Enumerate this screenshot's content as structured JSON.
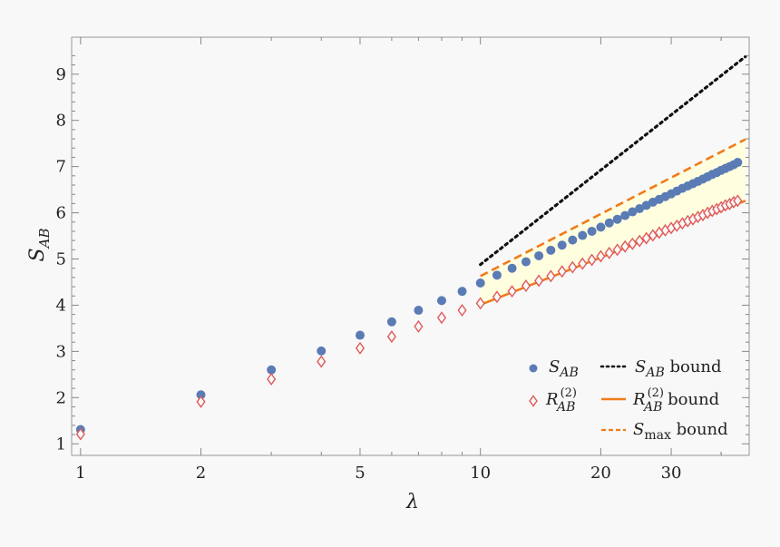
{
  "chart_data": {
    "type": "scatter",
    "title": "",
    "xlabel": "λ",
    "ylabel": "S_AB",
    "xscale": "log",
    "xlim": [
      0.95,
      47
    ],
    "ylim": [
      0.75,
      9.8
    ],
    "xticks": [
      1,
      2,
      5,
      10,
      20,
      30
    ],
    "xtick_labels": [
      "1",
      "2",
      "5",
      "10",
      "20",
      "30"
    ],
    "yticks": [
      1,
      2,
      3,
      4,
      5,
      6,
      7,
      8,
      9
    ],
    "ytick_labels": [
      "1",
      "2",
      "3",
      "4",
      "5",
      "6",
      "7",
      "8",
      "9"
    ],
    "grid": false,
    "legend_position": "bottom-right",
    "series": [
      {
        "name": "S_AB",
        "marker": "circle",
        "color": "#5b7bb5",
        "x": [
          1,
          2,
          3,
          4,
          5,
          6,
          7,
          8,
          9,
          10,
          11,
          12,
          13,
          14,
          15,
          16,
          17,
          18,
          19,
          20,
          21,
          22,
          23,
          24,
          25,
          26,
          27,
          28,
          29,
          30,
          31,
          32,
          33,
          34,
          35,
          36,
          37,
          38,
          39,
          40,
          41,
          42,
          43,
          44
        ],
        "y": [
          1.31,
          2.06,
          2.6,
          3.01,
          3.35,
          3.64,
          3.89,
          4.1,
          4.3,
          4.48,
          4.65,
          4.8,
          4.94,
          5.07,
          5.19,
          5.3,
          5.41,
          5.51,
          5.6,
          5.69,
          5.78,
          5.86,
          5.94,
          6.02,
          6.09,
          6.16,
          6.23,
          6.29,
          6.35,
          6.41,
          6.47,
          6.53,
          6.58,
          6.63,
          6.68,
          6.73,
          6.78,
          6.83,
          6.87,
          6.92,
          6.96,
          7.0,
          7.04,
          7.09
        ]
      },
      {
        "name": "R_AB^(2)",
        "marker": "diamond-open",
        "color": "#e05a5a",
        "x": [
          1,
          2,
          3,
          4,
          5,
          6,
          7,
          8,
          9,
          10,
          11,
          12,
          13,
          14,
          15,
          16,
          17,
          18,
          19,
          20,
          21,
          22,
          23,
          24,
          25,
          26,
          27,
          28,
          29,
          30,
          31,
          32,
          33,
          34,
          35,
          36,
          37,
          38,
          39,
          40,
          41,
          42,
          43,
          44
        ],
        "y": [
          1.21,
          1.91,
          2.4,
          2.78,
          3.07,
          3.32,
          3.54,
          3.73,
          3.89,
          4.04,
          4.18,
          4.3,
          4.42,
          4.53,
          4.63,
          4.73,
          4.82,
          4.9,
          4.98,
          5.06,
          5.13,
          5.2,
          5.27,
          5.33,
          5.39,
          5.45,
          5.51,
          5.57,
          5.62,
          5.67,
          5.72,
          5.77,
          5.82,
          5.86,
          5.91,
          5.95,
          6.0,
          6.04,
          6.08,
          6.12,
          6.16,
          6.19,
          6.23,
          6.26
        ]
      },
      {
        "name": "S_AB bound",
        "line": "dotted",
        "color": "#111111",
        "x": [
          10,
          46
        ],
        "y": [
          4.88,
          9.38
        ]
      },
      {
        "name": "R_AB^(2) bound",
        "line": "solid",
        "color": "#f07b1a",
        "x": [
          10,
          46
        ],
        "y": [
          4.01,
          6.26
        ]
      },
      {
        "name": "S_max bound",
        "line": "dashed",
        "color": "#f07b1a",
        "x": [
          10,
          46
        ],
        "y": [
          4.63,
          7.59
        ]
      }
    ],
    "shaded_band": {
      "between": [
        "R_AB^(2) bound",
        "S_max bound"
      ],
      "x_range": [
        10,
        46
      ],
      "color": "#ffffe0"
    },
    "legend": [
      {
        "main": "S",
        "sub": "AB",
        "sup": "",
        "suffix": ""
      },
      {
        "main": "S",
        "sub": "AB",
        "sup": "",
        "suffix": " bound"
      },
      {
        "main": "R",
        "sub": "AB",
        "sup": "(2)",
        "suffix": ""
      },
      {
        "main": "R",
        "sub": "AB",
        "sup": "(2)",
        "suffix": " bound"
      },
      {
        "main": "S",
        "sub": "max",
        "sup": "",
        "suffix": " bound"
      }
    ]
  }
}
